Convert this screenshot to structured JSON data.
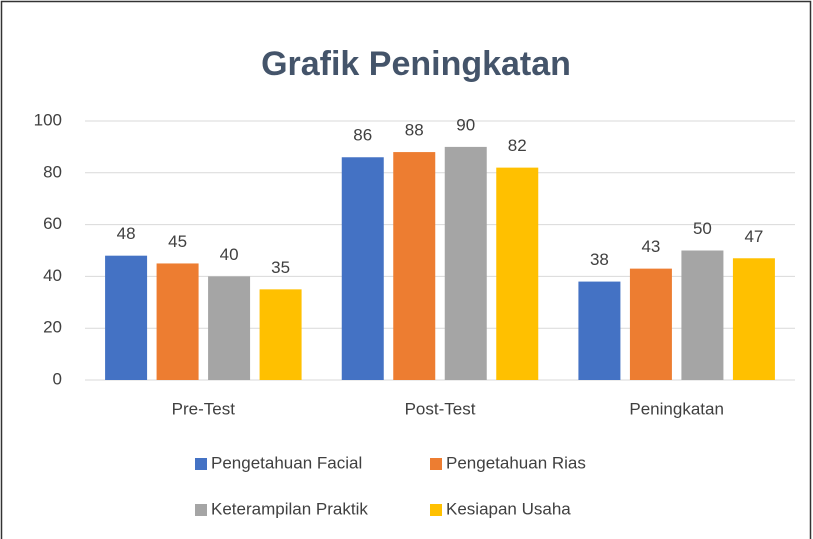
{
  "chart_data": {
    "type": "bar",
    "title": "Grafik Peningkatan",
    "categories": [
      "Pre-Test",
      "Post-Test",
      "Peningkatan"
    ],
    "series": [
      {
        "name": "Pengetahuan Facial",
        "color": "#4472c4",
        "values": [
          48,
          86,
          38
        ]
      },
      {
        "name": "Pengetahuan Rias",
        "color": "#ed7d31",
        "values": [
          45,
          88,
          43
        ]
      },
      {
        "name": "Keterampilan Praktik",
        "color": "#a5a5a5",
        "values": [
          40,
          90,
          50
        ]
      },
      {
        "name": "Kesiapan Usaha",
        "color": "#ffc000",
        "values": [
          35,
          82,
          47
        ]
      }
    ],
    "ylim": [
      0,
      100
    ],
    "yticks": [
      0,
      20,
      40,
      60,
      80,
      100
    ],
    "grid": true,
    "legend": "bottom"
  }
}
